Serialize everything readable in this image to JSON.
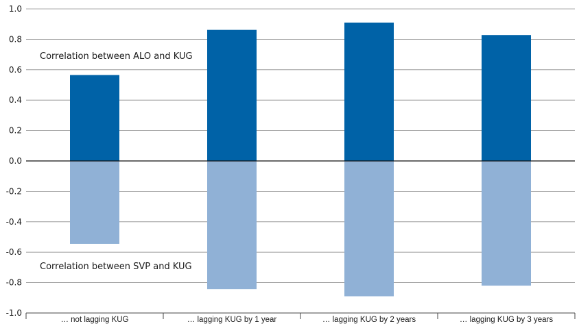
{
  "chart_data": {
    "type": "bar",
    "title": "",
    "xlabel": "",
    "ylabel": "",
    "ylim": [
      -1.0,
      1.0
    ],
    "yticks": [
      "1.0",
      "0.8",
      "0.6",
      "0.4",
      "0.2",
      "0.0",
      "-0.2",
      "-0.4",
      "-0.6",
      "-0.8",
      "-1.0"
    ],
    "ytick_values": [
      1.0,
      0.8,
      0.6,
      0.4,
      0.2,
      0.0,
      -0.2,
      -0.4,
      -0.6,
      -0.8,
      -1.0
    ],
    "grid": true,
    "legend": "none",
    "categories": [
      "… not lagging KUG",
      "… lagging KUG by 1 year",
      "… lagging KUG by 2 years",
      "… lagging KUG by 3 years"
    ],
    "series": [
      {
        "values": [
          0.565,
          0.862,
          0.91,
          0.828
        ],
        "color": "#0062a7"
      },
      {
        "values": [
          -0.545,
          -0.843,
          -0.89,
          -0.82
        ],
        "color": "#90b1d6"
      }
    ],
    "annotations": [
      {
        "text": "Correlation between ALO and KUG"
      },
      {
        "text": "Correlation between SVP and KUG"
      }
    ]
  }
}
